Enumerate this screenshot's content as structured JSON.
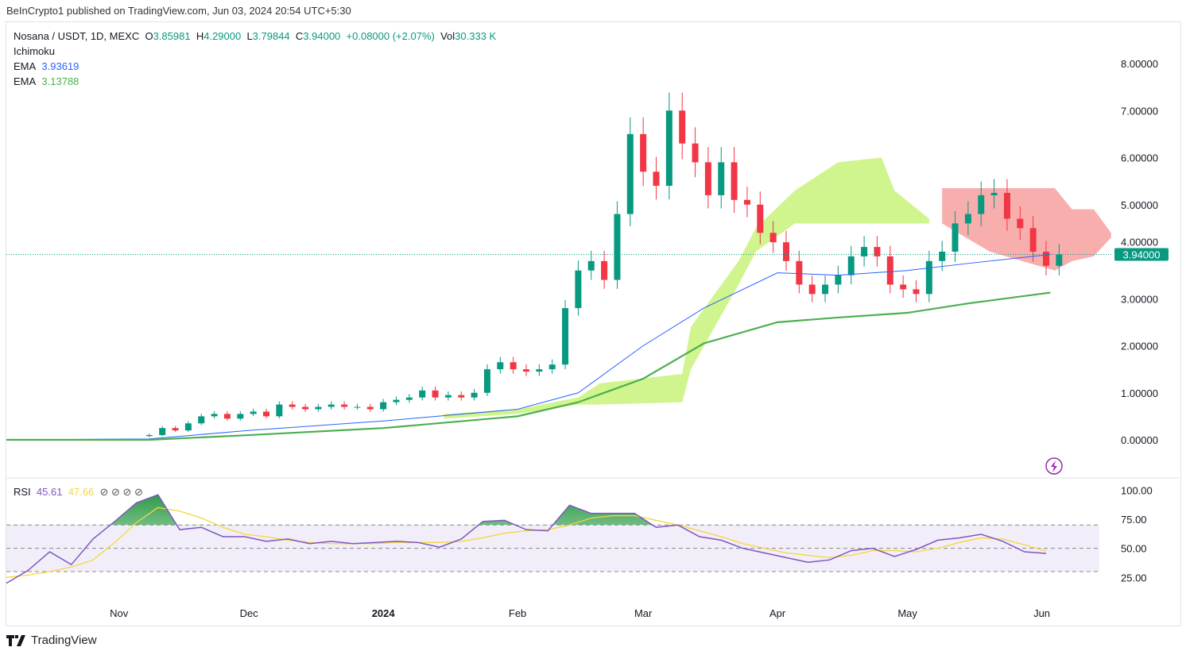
{
  "publisher": "BeInCrypto1 published on TradingView.com, Jun 03, 2024 20:54 UTC+5:30",
  "legend": {
    "symbol": "Nosana / USDT, 1D, MEXC",
    "o_label": "O",
    "o": "3.85981",
    "h_label": "H",
    "h": "4.29000",
    "l_label": "L",
    "l": "3.79844",
    "c_label": "C",
    "c": "3.94000",
    "change": "+0.08000 (+2.07%)",
    "vol_label": "Vol",
    "vol": "30.333 K",
    "ichimoku": "Ichimoku",
    "ema1_label": "EMA",
    "ema1": "3.93619",
    "ema2_label": "EMA",
    "ema2": "3.13788"
  },
  "rsi_legend": {
    "label": "RSI",
    "rsi": "45.61",
    "ma": "47.66",
    "icons": "⊘ ⊘ ⊘ ⊘"
  },
  "brand": "TradingView",
  "colors": {
    "up": "#089981",
    "down": "#f23645",
    "ema1": "#2962ff",
    "ema2": "#4caf50",
    "cloud_bull": "#c8f27a",
    "cloud_bear": "#f8a0a0",
    "rsi": "#7e57c2",
    "rsi_ma": "#f5d63d"
  },
  "chart_data": [
    {
      "type": "candlestick",
      "title": "Nosana / USDT, 1D, MEXC",
      "ylim": [
        0,
        8.4
      ],
      "yticks": [
        "0.00000",
        "1.00000",
        "2.00000",
        "3.00000",
        "4.00000",
        "5.00000",
        "6.00000",
        "7.00000",
        "8.00000"
      ],
      "xticks": [
        {
          "date": "2023-11-01",
          "label": "Nov"
        },
        {
          "date": "2023-12-01",
          "label": "Dec"
        },
        {
          "date": "2024-01-01",
          "label": "2024"
        },
        {
          "date": "2024-02-01",
          "label": "Feb"
        },
        {
          "date": "2024-03-01",
          "label": "Mar"
        },
        {
          "date": "2024-04-01",
          "label": "Apr"
        },
        {
          "date": "2024-05-01",
          "label": "May"
        },
        {
          "date": "2024-06-01",
          "label": "Jun"
        }
      ],
      "last_price": "3.94000",
      "candles": {
        "start": "2023-11-08",
        "interval_days": 3,
        "closes": [
          0.1,
          0.25,
          0.2,
          0.35,
          0.5,
          0.55,
          0.45,
          0.55,
          0.6,
          0.5,
          0.75,
          0.7,
          0.65,
          0.7,
          0.75,
          0.7,
          0.7,
          0.65,
          0.8,
          0.85,
          0.9,
          1.05,
          0.9,
          0.95,
          0.9,
          1.0,
          1.5,
          1.65,
          1.5,
          1.45,
          1.5,
          1.6,
          2.8,
          3.6,
          3.8,
          3.4,
          4.8,
          6.5,
          5.7,
          5.4,
          7.0,
          6.3,
          5.9,
          5.2,
          5.9,
          5.1,
          5.0,
          4.4,
          4.2,
          3.8,
          3.3,
          3.1,
          3.3,
          3.5,
          3.9,
          4.1,
          3.9,
          3.3,
          3.2,
          3.1,
          3.8,
          4.0,
          4.6,
          4.8,
          5.2,
          5.25,
          4.7,
          4.5,
          4.0,
          3.7,
          3.94
        ]
      },
      "ema_fast": [
        [
          "2023-10-06",
          0
        ],
        [
          "2023-11-08",
          0.02
        ],
        [
          "2023-12-01",
          0.2
        ],
        [
          "2024-01-01",
          0.4
        ],
        [
          "2024-02-01",
          0.65
        ],
        [
          "2024-02-15",
          1.0
        ],
        [
          "2024-03-01",
          2.0
        ],
        [
          "2024-03-15",
          2.8
        ],
        [
          "2024-04-01",
          3.55
        ],
        [
          "2024-04-15",
          3.5
        ],
        [
          "2024-05-01",
          3.6
        ],
        [
          "2024-05-15",
          3.75
        ],
        [
          "2024-06-03",
          3.94
        ]
      ],
      "ema_slow": [
        [
          "2023-10-06",
          0
        ],
        [
          "2023-11-08",
          0
        ],
        [
          "2023-12-01",
          0.1
        ],
        [
          "2024-01-01",
          0.25
        ],
        [
          "2024-02-01",
          0.5
        ],
        [
          "2024-02-15",
          0.8
        ],
        [
          "2024-03-01",
          1.3
        ],
        [
          "2024-03-15",
          2.05
        ],
        [
          "2024-04-01",
          2.5
        ],
        [
          "2024-04-15",
          2.6
        ],
        [
          "2024-05-01",
          2.7
        ],
        [
          "2024-05-15",
          2.9
        ],
        [
          "2024-06-03",
          3.13
        ]
      ],
      "cloud_bull": [
        [
          "2024-01-15",
          0.45,
          0.55
        ],
        [
          "2024-02-01",
          0.55,
          0.65
        ],
        [
          "2024-02-15",
          0.75,
          0.9
        ],
        [
          "2024-02-20",
          0.75,
          1.2
        ],
        [
          "2024-03-10",
          0.8,
          1.4
        ],
        [
          "2024-03-12",
          1.5,
          2.4
        ],
        [
          "2024-03-23",
          3.3,
          3.8
        ],
        [
          "2024-03-27",
          4.0,
          4.5
        ],
        [
          "2024-04-05",
          4.6,
          5.3
        ],
        [
          "2024-04-15",
          4.6,
          5.9
        ],
        [
          "2024-04-25",
          4.6,
          6.0
        ],
        [
          "2024-04-28",
          4.6,
          5.3
        ],
        [
          "2024-05-06",
          4.6,
          4.7
        ]
      ],
      "cloud_bear": [
        [
          "2024-05-09",
          4.6,
          5.35
        ],
        [
          "2024-05-20",
          4.0,
          5.35
        ],
        [
          "2024-06-04",
          3.6,
          5.35
        ],
        [
          "2024-06-08",
          3.8,
          4.9
        ],
        [
          "2024-06-13",
          3.9,
          4.9
        ],
        [
          "2024-06-17",
          4.3,
          4.4
        ]
      ]
    },
    {
      "type": "line",
      "title": "RSI",
      "ylim": [
        0,
        100
      ],
      "yticks": [
        "25.00",
        "50.00",
        "75.00",
        "100.00"
      ],
      "bands": [
        30,
        50,
        70
      ],
      "series": {
        "start": "2023-10-06",
        "interval_days": 5,
        "rsi": [
          20,
          31,
          47,
          36,
          58,
          73,
          89,
          96,
          66,
          68,
          60,
          60,
          56,
          58,
          54,
          56,
          54,
          55,
          56,
          55,
          51,
          58,
          73,
          74,
          66,
          65,
          87,
          80,
          80,
          80,
          68,
          70,
          60,
          57,
          50,
          46,
          42,
          38,
          40,
          48,
          50,
          43,
          49,
          57,
          59,
          62,
          56,
          47,
          45.61
        ],
        "rsi_ma": [
          25,
          27,
          30,
          34,
          40,
          55,
          72,
          85,
          82,
          76,
          68,
          62,
          60,
          57,
          55,
          54,
          54,
          54,
          55,
          55,
          55,
          56,
          59,
          63,
          65,
          66,
          70,
          76,
          78,
          78,
          74,
          70,
          65,
          60,
          54,
          50,
          46,
          44,
          42,
          44,
          48,
          48,
          47,
          50,
          55,
          59,
          58,
          53,
          47.66
        ]
      }
    }
  ]
}
